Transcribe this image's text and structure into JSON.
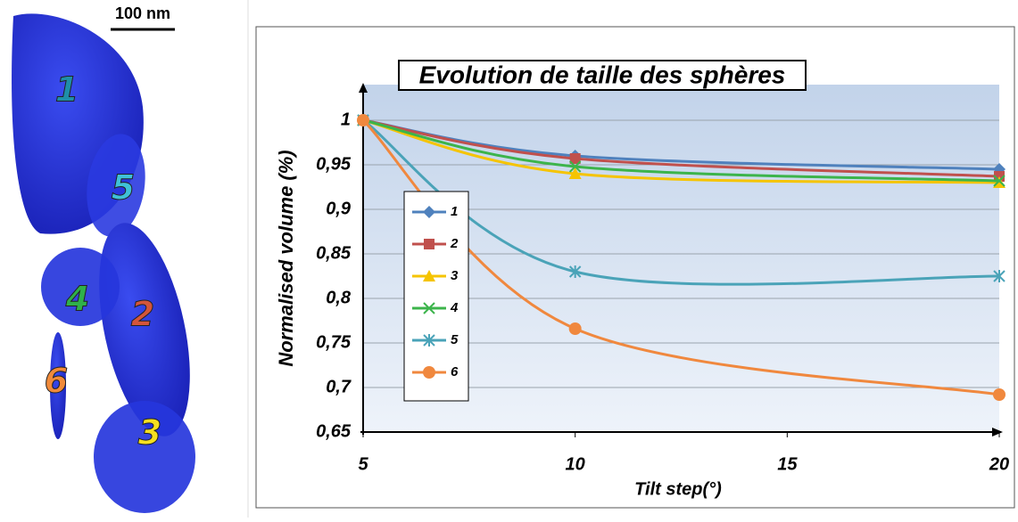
{
  "image": {
    "scale_bar": "100 nm",
    "labels": [
      "1",
      "5",
      "4",
      "2",
      "6",
      "3"
    ]
  },
  "chart_data": {
    "type": "line",
    "title": "Evolution de taille des sphères",
    "x_label": "Tilt step(°)",
    "y_label": "Normalised volume (%)",
    "x": [
      5,
      10,
      20
    ],
    "series": [
      {
        "name": "1",
        "color": "#4f81bd",
        "marker": "diamond",
        "values": [
          1,
          0.96,
          0.945
        ]
      },
      {
        "name": "2",
        "color": "#c0504d",
        "marker": "square",
        "values": [
          1,
          0.957,
          0.937
        ]
      },
      {
        "name": "3",
        "color": "#f5c400",
        "marker": "triangle",
        "values": [
          1,
          0.94,
          0.93
        ]
      },
      {
        "name": "4",
        "color": "#3cb44b",
        "marker": "x",
        "values": [
          1,
          0.948,
          0.932
        ]
      },
      {
        "name": "5",
        "color": "#4aa3b8",
        "marker": "star",
        "values": [
          1,
          0.83,
          0.825
        ]
      },
      {
        "name": "6",
        "color": "#f0883e",
        "marker": "circle",
        "values": [
          1,
          0.766,
          0.692
        ]
      }
    ],
    "xlim": [
      5,
      20
    ],
    "xticks": [
      5,
      10,
      15,
      20
    ],
    "ylim": [
      0.65,
      1.04
    ],
    "yticks": [
      {
        "value": 0.65,
        "label": "0,65"
      },
      {
        "value": 0.7,
        "label": "0,7"
      },
      {
        "value": 0.75,
        "label": "0,75"
      },
      {
        "value": 0.8,
        "label": "0,8"
      },
      {
        "value": 0.85,
        "label": "0,85"
      },
      {
        "value": 0.9,
        "label": "0,9"
      },
      {
        "value": 0.95,
        "label": "0,95"
      },
      1
    ],
    "grid": true,
    "smooth": true
  }
}
